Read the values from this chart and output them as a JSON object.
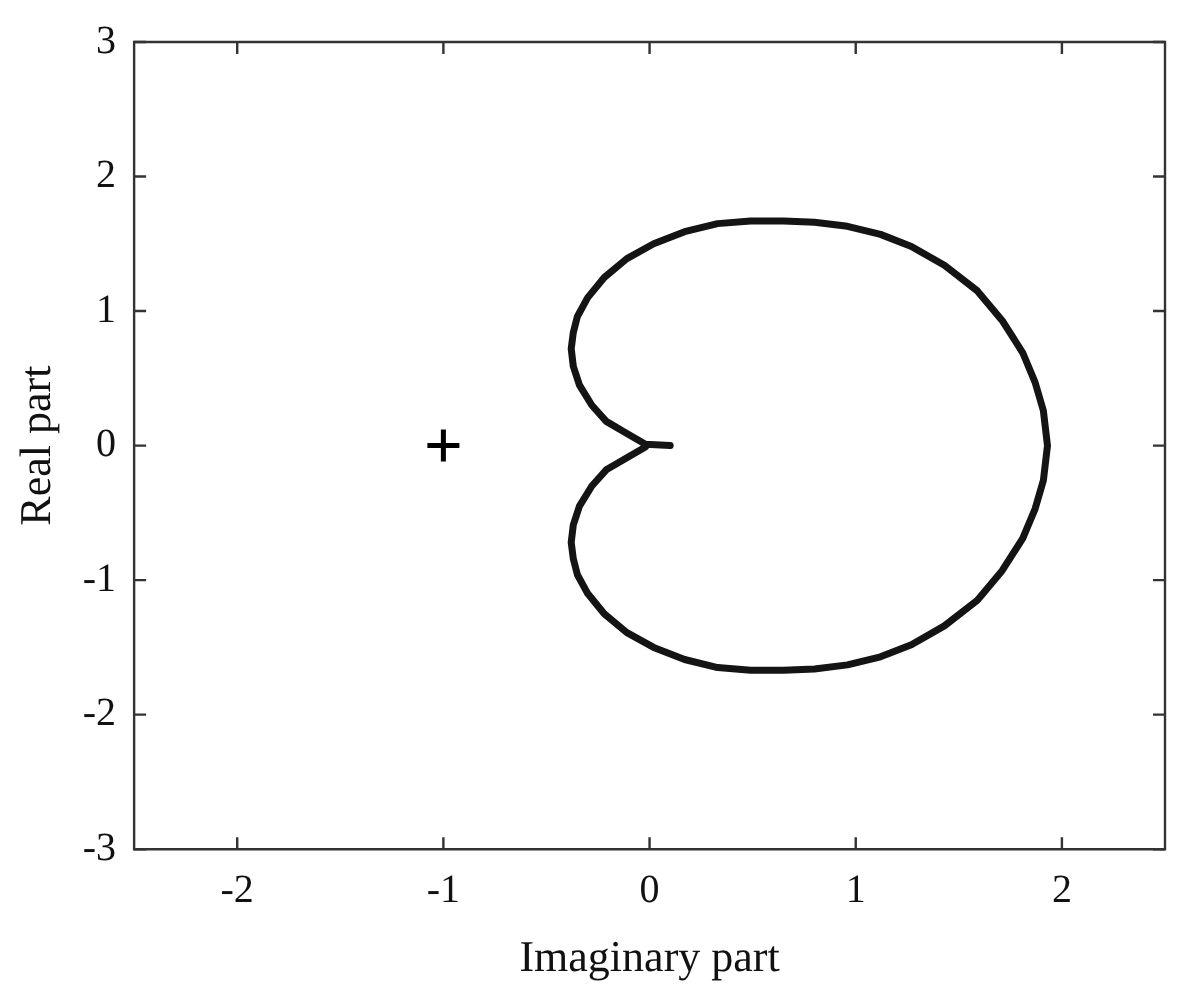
{
  "chart_data": {
    "type": "line",
    "xlabel": "Imaginary part",
    "ylabel": "Real part",
    "xlim": [
      -2.5,
      2.5
    ],
    "ylim": [
      -3,
      3
    ],
    "xticks": [
      -2,
      -1,
      0,
      1,
      2
    ],
    "yticks": [
      -3,
      -2,
      -1,
      0,
      1,
      2,
      3
    ],
    "marker": "none",
    "line_style": "solid",
    "series": [
      {
        "color": "#141414",
        "x": [
          0.1,
          -0.02,
          -0.11,
          -0.21,
          -0.28,
          -0.34,
          -0.37,
          -0.38,
          -0.37,
          -0.35,
          -0.3,
          -0.22,
          -0.11,
          0.02,
          0.17,
          0.33,
          0.49,
          0.65,
          0.8,
          0.96,
          1.12,
          1.27,
          1.43,
          1.59,
          1.71,
          1.81,
          1.87,
          1.91,
          1.93,
          1.91,
          1.87,
          1.81,
          1.71,
          1.59,
          1.43,
          1.27,
          1.12,
          0.96,
          0.8,
          0.65,
          0.49,
          0.33,
          0.17,
          0.02,
          -0.11,
          -0.22,
          -0.3,
          -0.35,
          -0.37,
          -0.38,
          -0.37,
          -0.34,
          -0.28,
          -0.21,
          -0.11,
          -0.02
        ],
        "values": [
          0,
          0.01,
          0.09,
          0.18,
          0.3,
          0.45,
          0.59,
          0.72,
          0.84,
          0.96,
          1.1,
          1.25,
          1.39,
          1.5,
          1.59,
          1.65,
          1.67,
          1.67,
          1.66,
          1.63,
          1.57,
          1.48,
          1.34,
          1.15,
          0.93,
          0.69,
          0.47,
          0.26,
          0,
          -0.26,
          -0.47,
          -0.69,
          -0.93,
          -1.15,
          -1.34,
          -1.48,
          -1.57,
          -1.63,
          -1.66,
          -1.67,
          -1.67,
          -1.65,
          -1.59,
          -1.5,
          -1.39,
          -1.25,
          -1.1,
          -0.96,
          -0.84,
          -0.72,
          -0.59,
          -0.45,
          -0.3,
          -0.18,
          -0.09,
          -0.01
        ]
      },
      {
        "type": "scatter",
        "marker": "cross",
        "color": "#000000",
        "x": [
          -1
        ],
        "values": [
          0
        ]
      }
    ]
  }
}
